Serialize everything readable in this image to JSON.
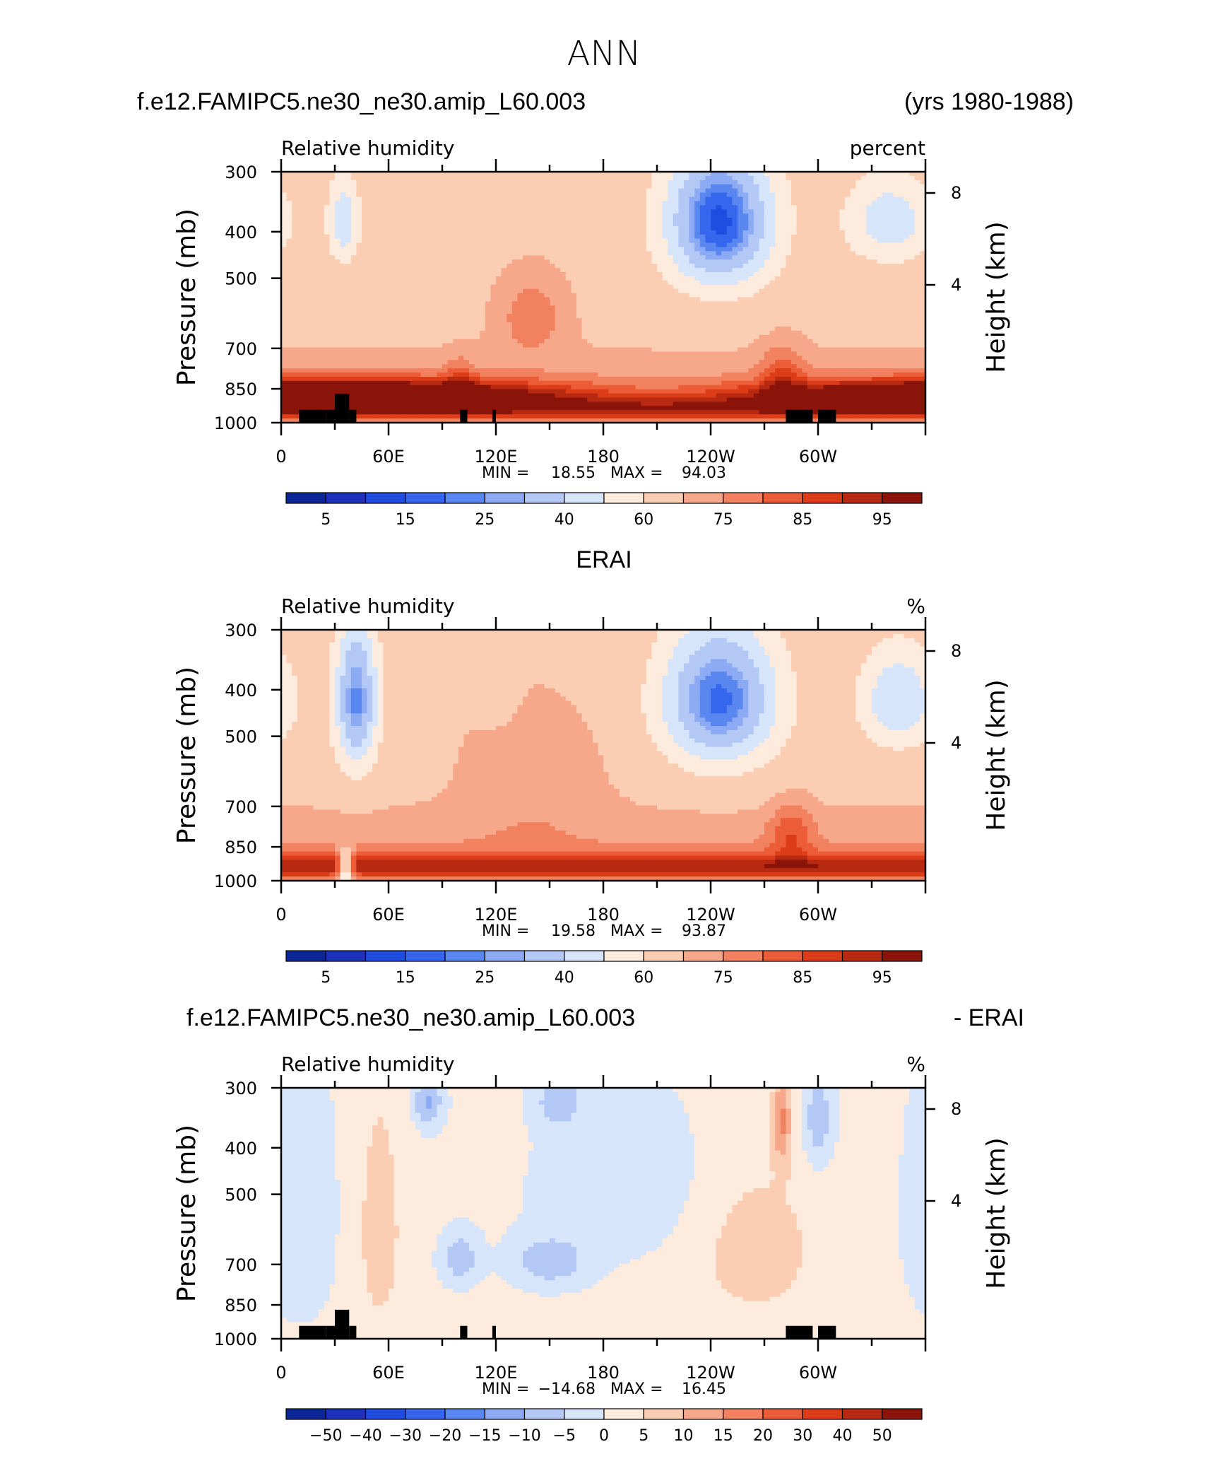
{
  "figure_title": "ANN",
  "colors": {
    "rh_levels": [
      "#0b2795",
      "#1a33b8",
      "#1f4de0",
      "#3766ee",
      "#5a86ef",
      "#8daaf4",
      "#b4c8f6",
      "#d7e5fa",
      "#fdebdd",
      "#fbcdb3",
      "#f7a88a",
      "#f2825f",
      "#ec5d37",
      "#dc3d18",
      "#b82912",
      "#8a1409"
    ],
    "diff_levels": [
      "#0b2795",
      "#1a33b8",
      "#1f4de0",
      "#3766ee",
      "#5a86ef",
      "#8daaf4",
      "#b4c8f6",
      "#d7e5fa",
      "#fdebdd",
      "#fbcdb3",
      "#f7a88a",
      "#f2825f",
      "#ec5d37",
      "#dc3d18",
      "#b82912",
      "#8a1409"
    ],
    "terrain": "#000000"
  },
  "chart_data": [
    {
      "type": "heatmap",
      "title_left": "f.e12.FAMIPC5.ne30_ne30.amip_L60.003",
      "title_center": "",
      "title_right": "(yrs 1980-1988)",
      "subtitle_left": "Relative humidity",
      "subtitle_right": "percent",
      "ylabel": "Pressure (mb)",
      "ylabel_right": "Height (km)",
      "y_ticks": [
        "300",
        "400",
        "500",
        "700",
        "850",
        "1000"
      ],
      "y_right_ticks": [
        "8",
        "4"
      ],
      "x_ticks": [
        "0",
        "60E",
        "120E",
        "180",
        "120W",
        "60W"
      ],
      "ylim": [
        1000,
        300
      ],
      "xlim": [
        0,
        360
      ],
      "min_label": "MIN =",
      "min_value": "18.55",
      "max_label": "MAX =",
      "max_value": "94.03",
      "colorbar_labels": [
        "5",
        "15",
        "25",
        "40",
        "60",
        "75",
        "85",
        "95"
      ],
      "features": [
        {
          "kind": "max",
          "lon": 30,
          "p": 870,
          "w": 120,
          "h": 60,
          "v": 40
        },
        {
          "kind": "min",
          "lon": 245,
          "p": 380,
          "w": 30,
          "h": 130,
          "v": 55
        },
        {
          "kind": "min",
          "lon": 340,
          "p": 380,
          "w": 25,
          "h": 80,
          "v": 25
        },
        {
          "kind": "min",
          "lon": 35,
          "p": 380,
          "w": 9,
          "h": 80,
          "v": 25
        },
        {
          "kind": "max",
          "lon": 100,
          "p": 820,
          "w": 8,
          "h": 90,
          "v": 10
        },
        {
          "kind": "max",
          "lon": 280,
          "p": 800,
          "w": 12,
          "h": 120,
          "v": 12
        },
        {
          "kind": "max",
          "lon": 140,
          "p": 600,
          "w": 20,
          "h": 120,
          "v": 10
        }
      ],
      "terrain_blocks": [
        [
          10,
          25,
          940
        ],
        [
          25,
          30,
          940
        ],
        [
          30,
          38,
          870
        ],
        [
          38,
          42,
          940
        ],
        [
          100,
          104,
          940
        ],
        [
          118,
          120,
          940
        ],
        [
          282,
          297,
          940
        ],
        [
          300,
          310,
          940
        ]
      ]
    },
    {
      "type": "heatmap",
      "title_left": "",
      "title_center": "ERAI",
      "title_right": "",
      "subtitle_left": "Relative humidity",
      "subtitle_right": "%",
      "ylabel": "Pressure (mb)",
      "ylabel_right": "Height (km)",
      "y_ticks": [
        "300",
        "400",
        "500",
        "700",
        "850",
        "1000"
      ],
      "y_right_ticks": [
        "8",
        "4"
      ],
      "x_ticks": [
        "0",
        "60E",
        "120E",
        "180",
        "120W",
        "60W"
      ],
      "ylim": [
        1000,
        300
      ],
      "xlim": [
        0,
        360
      ],
      "min_label": "MIN =",
      "min_value": "19.58",
      "max_label": "MAX =",
      "max_value": "93.87",
      "colorbar_labels": [
        "5",
        "15",
        "25",
        "40",
        "60",
        "75",
        "85",
        "95"
      ],
      "features": [
        {
          "kind": "min",
          "lon": 245,
          "p": 420,
          "w": 32,
          "h": 140,
          "v": 50
        },
        {
          "kind": "min",
          "lon": 42,
          "p": 420,
          "w": 12,
          "h": 150,
          "v": 45
        },
        {
          "kind": "min",
          "lon": 345,
          "p": 420,
          "w": 22,
          "h": 100,
          "v": 28
        },
        {
          "kind": "max",
          "lon": 140,
          "p": 600,
          "w": 40,
          "h": 200,
          "v": 6
        },
        {
          "kind": "min",
          "lon": 120,
          "p": 400,
          "w": 10,
          "h": 60,
          "v": 8
        },
        {
          "kind": "max",
          "lon": 285,
          "p": 800,
          "w": 12,
          "h": 120,
          "v": 12
        },
        {
          "kind": "min",
          "lon": 36,
          "p": 950,
          "w": 4,
          "h": 80,
          "v": 35
        }
      ],
      "terrain_blocks": []
    },
    {
      "type": "heatmap",
      "title_left": "f.e12.FAMIPC5.ne30_ne30.amip_L60.003",
      "title_center": "",
      "title_right": "- ERAI",
      "subtitle_left": "Relative humidity",
      "subtitle_right": "%",
      "ylabel": "Pressure (mb)",
      "ylabel_right": "Height (km)",
      "y_ticks": [
        "300",
        "400",
        "500",
        "700",
        "850",
        "1000"
      ],
      "y_right_ticks": [
        "8",
        "4"
      ],
      "x_ticks": [
        "0",
        "60E",
        "120E",
        "180",
        "120W",
        "60W"
      ],
      "ylim": [
        1000,
        300
      ],
      "xlim": [
        0,
        360
      ],
      "min_label": "MIN =",
      "min_value": "−14.68",
      "max_label": "MAX =",
      "max_value": "16.45",
      "colorbar_labels": [
        "−50",
        "−40",
        "−30",
        "−20",
        "−15",
        "−10",
        "−5",
        "0",
        "5",
        "10",
        "15",
        "20",
        "30",
        "40",
        "50"
      ],
      "features": [
        {
          "kind": "min",
          "lon": 100,
          "p": 680,
          "w": 10,
          "h": 80,
          "v": 10
        },
        {
          "kind": "min",
          "lon": 150,
          "p": 690,
          "w": 20,
          "h": 80,
          "v": 10
        },
        {
          "kind": "max",
          "lon": 265,
          "p": 650,
          "w": 35,
          "h": 250,
          "v": 7
        },
        {
          "kind": "max",
          "lon": 55,
          "p": 600,
          "w": 15,
          "h": 400,
          "v": 6
        },
        {
          "kind": "max",
          "lon": 280,
          "p": 350,
          "w": 5,
          "h": 80,
          "v": 14
        },
        {
          "kind": "min",
          "lon": 82,
          "p": 320,
          "w": 8,
          "h": 40,
          "v": 12
        },
        {
          "kind": "min",
          "lon": 155,
          "p": 320,
          "w": 12,
          "h": 40,
          "v": 10
        },
        {
          "kind": "min",
          "lon": 300,
          "p": 350,
          "w": 8,
          "h": 80,
          "v": 10
        },
        {
          "kind": "min",
          "lon": 10,
          "p": 550,
          "w": 20,
          "h": 300,
          "v": 5
        },
        {
          "kind": "min",
          "lon": 195,
          "p": 480,
          "w": 50,
          "h": 180,
          "v": 4
        }
      ],
      "terrain_blocks": [
        [
          10,
          25,
          940
        ],
        [
          25,
          30,
          940
        ],
        [
          30,
          38,
          870
        ],
        [
          38,
          42,
          940
        ],
        [
          100,
          104,
          940
        ],
        [
          118,
          120,
          940
        ],
        [
          282,
          297,
          940
        ],
        [
          300,
          310,
          940
        ]
      ]
    }
  ]
}
